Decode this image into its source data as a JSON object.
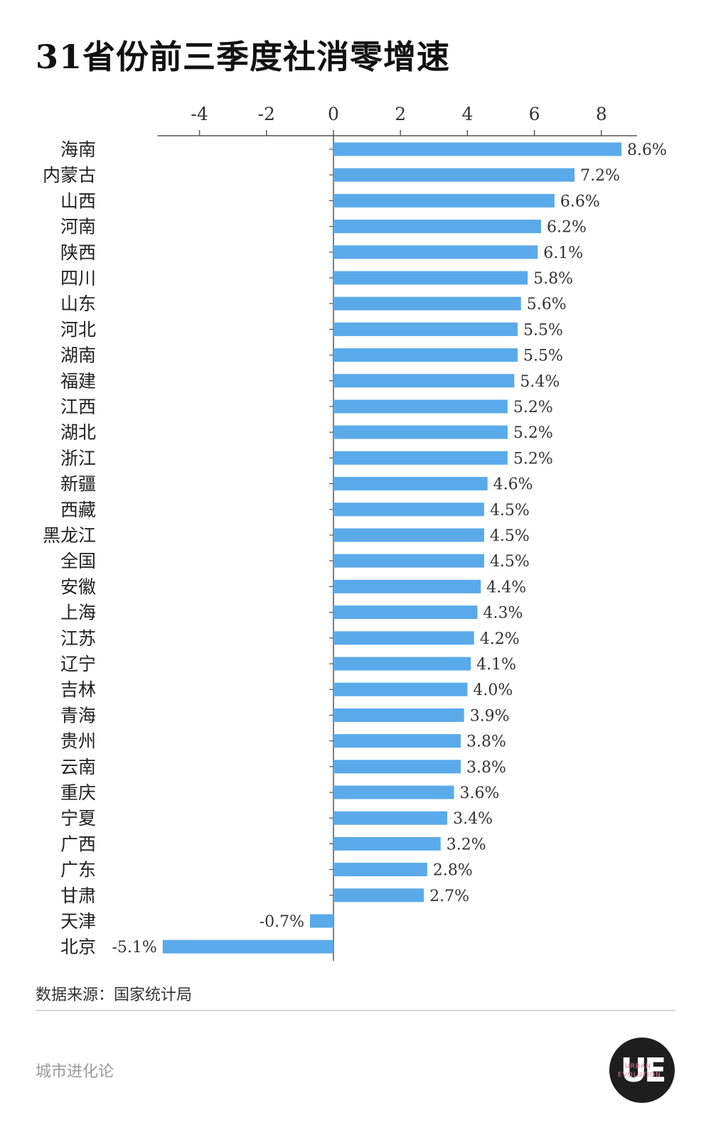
{
  "title": "31省份前三季度社消零增速",
  "source": "数据来源：国家统计局",
  "brand": "城市进化论",
  "logo": {
    "mark": "UE",
    "line1": "URBAN",
    "line2": "EVOLUTION"
  },
  "colors": {
    "bar": "#5aaaea",
    "axis": "#555555"
  },
  "chart_data": {
    "type": "bar",
    "orientation": "horizontal",
    "title": "31省份前三季度社消零增速",
    "xlim": [
      -5.3,
      9.0
    ],
    "xticks": [
      -4,
      -2,
      0,
      2,
      4,
      6,
      8
    ],
    "xtick_labels": [
      "-4",
      "-2",
      "0",
      "2",
      "4",
      "6",
      "8"
    ],
    "xaxis_position": "top",
    "categories": [
      "海南",
      "内蒙古",
      "山西",
      "河南",
      "陕西",
      "四川",
      "山东",
      "河北",
      "湖南",
      "福建",
      "江西",
      "湖北",
      "浙江",
      "新疆",
      "西藏",
      "黑龙江",
      "全国",
      "安徽",
      "上海",
      "江苏",
      "辽宁",
      "吉林",
      "青海",
      "贵州",
      "云南",
      "重庆",
      "宁夏",
      "广西",
      "广东",
      "甘肃",
      "天津",
      "北京"
    ],
    "values": [
      8.6,
      7.2,
      6.6,
      6.2,
      6.1,
      5.8,
      5.6,
      5.5,
      5.5,
      5.4,
      5.2,
      5.2,
      5.2,
      4.6,
      4.5,
      4.5,
      4.5,
      4.4,
      4.3,
      4.2,
      4.1,
      4.0,
      3.9,
      3.8,
      3.8,
      3.6,
      3.4,
      3.2,
      2.8,
      2.7,
      -0.7,
      -5.1
    ],
    "value_labels": [
      "8.6%",
      "7.2%",
      "6.6%",
      "6.2%",
      "6.1%",
      "5.8%",
      "5.6%",
      "5.5%",
      "5.5%",
      "5.4%",
      "5.2%",
      "5.2%",
      "5.2%",
      "4.6%",
      "4.5%",
      "4.5%",
      "4.5%",
      "4.4%",
      "4.3%",
      "4.2%",
      "4.1%",
      "4.0%",
      "3.9%",
      "3.8%",
      "3.8%",
      "3.6%",
      "3.4%",
      "3.2%",
      "2.8%",
      "2.7%",
      "-0.7%",
      "-5.1%"
    ],
    "grid": false,
    "legend": "none"
  }
}
